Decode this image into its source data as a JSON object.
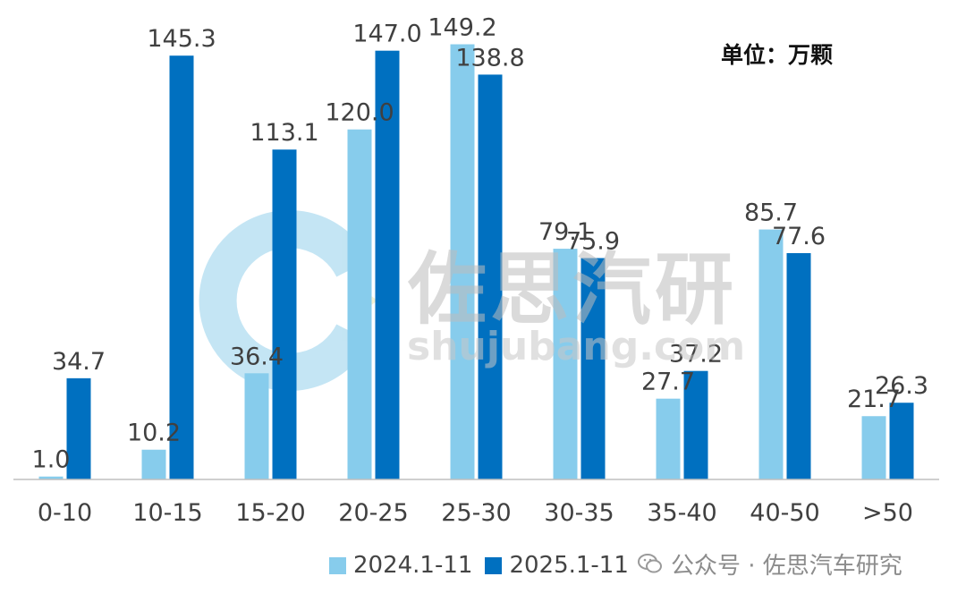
{
  "chart_data": {
    "type": "bar",
    "unit_label": "单位：万颗",
    "categories": [
      "0-10",
      "10-15",
      "15-20",
      "20-25",
      "25-30",
      "30-35",
      "35-40",
      "40-50",
      ">50"
    ],
    "series": [
      {
        "name": "2024.1-11",
        "color": "#87ccec",
        "values": [
          1.0,
          10.2,
          36.4,
          120.0,
          149.2,
          79.1,
          27.7,
          85.7,
          21.7
        ]
      },
      {
        "name": "2025.1-11",
        "color": "#0070c0",
        "values": [
          34.7,
          145.3,
          113.1,
          147.0,
          138.8,
          75.9,
          37.2,
          77.6,
          26.3
        ]
      }
    ],
    "value_labels": [
      [
        "1.0",
        "10.2",
        "36.4",
        "120.0",
        "149.2",
        "79.1",
        "27.7",
        "85.7",
        "21.7"
      ],
      [
        "34.7",
        "145.3",
        "113.1",
        "147.0",
        "138.8",
        "75.9",
        "37.2",
        "77.6",
        "26.3"
      ]
    ],
    "ylim": [
      0,
      160
    ],
    "grid": false,
    "legend_position": "bottom"
  },
  "watermark": {
    "brand": "佐思汽研",
    "site": "shujubang.com",
    "wechat": "公众号 · 佐思汽车研究"
  }
}
